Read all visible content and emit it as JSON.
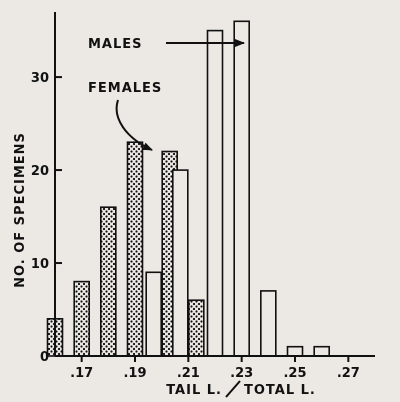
{
  "chart_data": {
    "type": "bar",
    "xlabel_left": "TAIL L.",
    "xlabel_right": "TOTAL L.",
    "ylabel": "NO. OF SPECIMENS",
    "x_ticks": [
      ".17",
      ".19",
      ".21",
      ".23",
      ".25",
      ".27"
    ],
    "y_ticks": [
      "0",
      "10",
      "20",
      "30"
    ],
    "ylim": [
      0,
      37
    ],
    "bin_start": 0.16,
    "bin_width": 0.01,
    "series": [
      {
        "name": "FEMALES",
        "pattern": "dotted",
        "values": [
          4,
          8,
          16,
          23,
          22,
          6,
          0,
          0,
          0,
          0,
          0
        ]
      },
      {
        "name": "MALES",
        "pattern": "open",
        "values": [
          0,
          0,
          0,
          0,
          9,
          20,
          35,
          36,
          7,
          1,
          1
        ]
      }
    ],
    "annotations": {
      "males": "MALES",
      "females": "FEMALES"
    },
    "grid": false
  }
}
